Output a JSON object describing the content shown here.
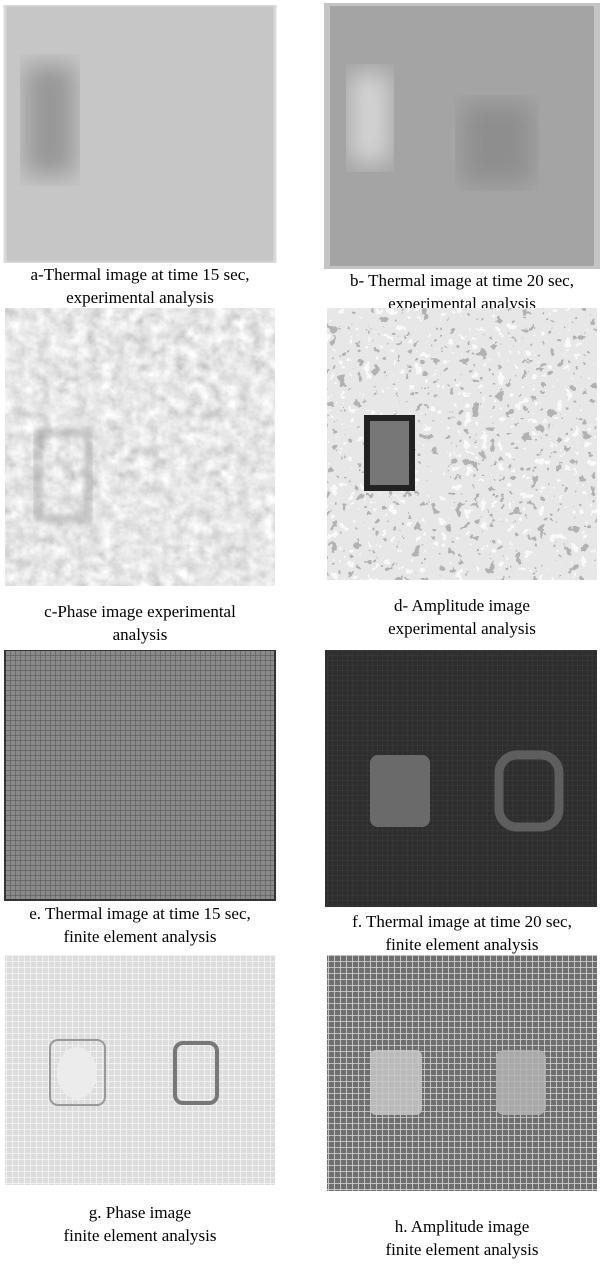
{
  "panels": [
    {
      "caption": [
        "a-Thermal image at time 15 sec,",
        "experimental analysis"
      ]
    },
    {
      "caption": [
        "b- Thermal image at time 20 sec,",
        "experimental analysis"
      ]
    },
    {
      "caption": [
        "c-Phase image experimental",
        "analysis"
      ]
    },
    {
      "caption": [
        "d- Amplitude image",
        "experimental analysis"
      ]
    },
    {
      "caption": [
        "e. Thermal image at time 15 sec,",
        "finite element analysis"
      ]
    },
    {
      "caption": [
        "f. Thermal image at time 20 sec,",
        "finite element analysis"
      ]
    },
    {
      "caption": [
        "g. Phase image",
        "finite element analysis"
      ]
    },
    {
      "caption": [
        "h. Amplitude image",
        "finite element analysis"
      ]
    }
  ]
}
